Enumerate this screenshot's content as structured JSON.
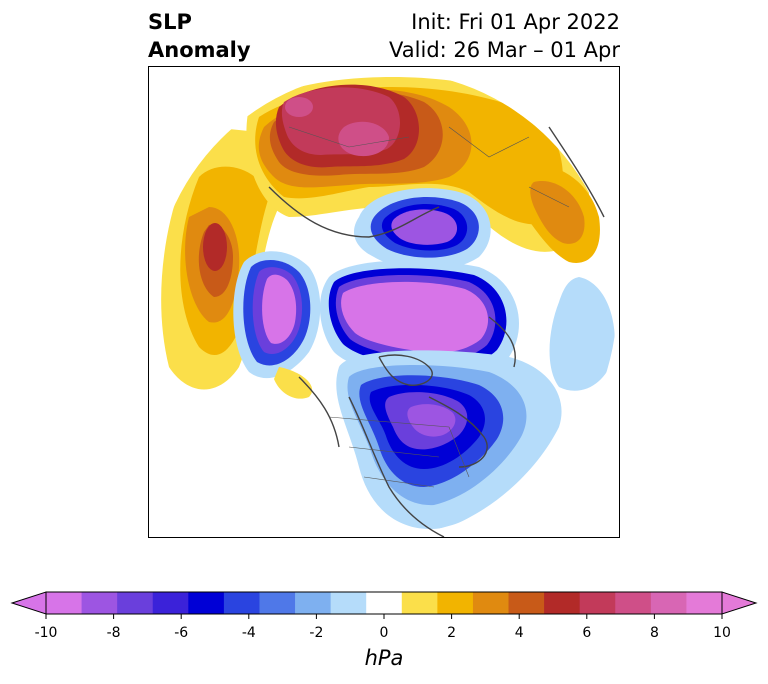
{
  "title": {
    "left_line1": "SLP",
    "left_line2": "Anomaly",
    "right_line1": "Init: Fri 01 Apr 2022",
    "right_line2": "Valid: 26 Mar – 01 Apr"
  },
  "colorbar": {
    "unit": "hPa",
    "ticks": [
      "-10",
      "-8",
      "-6",
      "-4",
      "-2",
      "0",
      "2",
      "4",
      "6",
      "8",
      "10"
    ],
    "levels": [
      -10,
      -9,
      -8,
      -7,
      -6,
      -5,
      -4,
      -3,
      -2,
      -1,
      1,
      2,
      3,
      4,
      5,
      6,
      7,
      8,
      9,
      10
    ],
    "colors": [
      "#d774e8",
      "#9d55e2",
      "#6a3fdc",
      "#3b22d9",
      "#0000d6",
      "#2a44e0",
      "#4f78e8",
      "#7eb0f0",
      "#b5dcfa",
      "#ffffff",
      "#fbdf4a",
      "#f2b400",
      "#e08a10",
      "#c85a18",
      "#b22a28",
      "#c23a5a",
      "#cf4f88",
      "#d866b4",
      "#e47ad8"
    ],
    "extend": "both"
  },
  "map": {
    "projection": "north-polar-stereographic",
    "variable": "sea level pressure anomaly",
    "features": [
      "positive anomaly over northern Eurasia / Siberia",
      "negative anomaly centered near Greenland-Arctic",
      "strong negative anomaly over eastern North America / Hudson Bay",
      "positive anomaly over North Pacific"
    ]
  }
}
